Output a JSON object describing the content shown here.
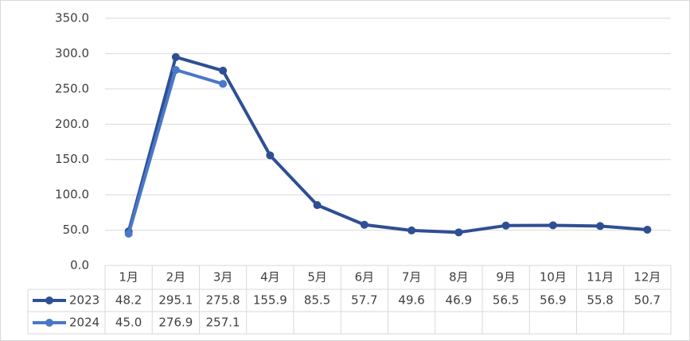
{
  "chart_data": {
    "type": "line",
    "categories": [
      "1月",
      "2月",
      "3月",
      "4月",
      "5月",
      "6月",
      "7月",
      "8月",
      "9月",
      "10月",
      "11月",
      "12月"
    ],
    "series": [
      {
        "name": "2023",
        "color": "#2f4f94",
        "values": [
          48.2,
          295.1,
          275.8,
          155.9,
          85.5,
          57.7,
          49.6,
          46.9,
          56.5,
          56.9,
          55.8,
          50.7
        ],
        "value_labels": [
          "48.2",
          "295.1",
          "275.8",
          "155.9",
          "85.5",
          "57.7",
          "49.6",
          "46.9",
          "56.5",
          "56.9",
          "55.8",
          "50.7"
        ]
      },
      {
        "name": "2024",
        "color": "#4a78c8",
        "values": [
          45.0,
          276.9,
          257.1,
          null,
          null,
          null,
          null,
          null,
          null,
          null,
          null,
          null
        ],
        "value_labels": [
          "45.0",
          "276.9",
          "257.1",
          null,
          null,
          null,
          null,
          null,
          null,
          null,
          null,
          null
        ]
      }
    ],
    "ylim": [
      0,
      350
    ],
    "yticks": [
      {
        "value": 0,
        "label": "0.0"
      },
      {
        "value": 50,
        "label": "50.0"
      },
      {
        "value": 100,
        "label": "100.0"
      },
      {
        "value": 150,
        "label": "150.0"
      },
      {
        "value": 200,
        "label": "200.0"
      },
      {
        "value": 250,
        "label": "250.0"
      },
      {
        "value": 300,
        "label": "300.0"
      },
      {
        "value": 350,
        "label": "350.0"
      }
    ],
    "grid": true,
    "data_table": true
  }
}
